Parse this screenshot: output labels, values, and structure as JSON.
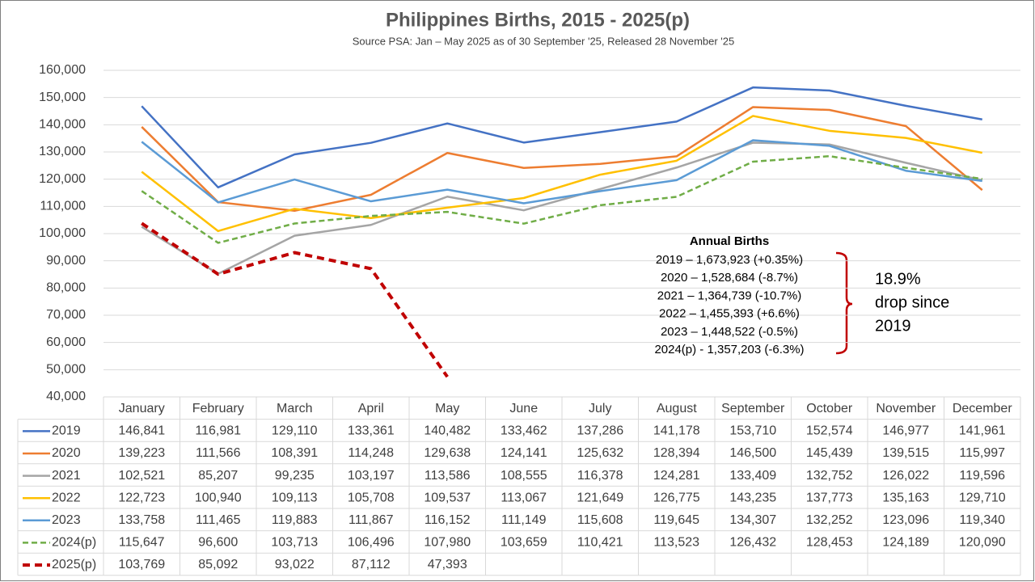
{
  "chart_data": {
    "type": "line",
    "title": "Philippines Births, 2015 - 2025(p)",
    "subtitle": "Source PSA: Jan – May 2025 as of 30 September '25, Released 28 November '25",
    "categories": [
      "January",
      "February",
      "March",
      "April",
      "May",
      "June",
      "July",
      "August",
      "September",
      "October",
      "November",
      "December"
    ],
    "ylim": [
      40000,
      160000
    ],
    "yticks": [
      {
        "value": 40000,
        "label": "40,000"
      },
      {
        "value": 50000,
        "label": "50,000"
      },
      {
        "value": 60000,
        "label": "60,000"
      },
      {
        "value": 70000,
        "label": "70,000"
      },
      {
        "value": 80000,
        "label": "80,000"
      },
      {
        "value": 90000,
        "label": "90,000"
      },
      {
        "value": 100000,
        "label": "100,000"
      },
      {
        "value": 110000,
        "label": "110,000"
      },
      {
        "value": 120000,
        "label": "120,000"
      },
      {
        "value": 130000,
        "label": "130,000"
      },
      {
        "value": 140000,
        "label": "140,000"
      },
      {
        "value": 150000,
        "label": "150,000"
      },
      {
        "value": 160000,
        "label": "160,000"
      }
    ],
    "grid": true,
    "series": [
      {
        "name": "2019",
        "color": "#4472c4",
        "line_style": "solid",
        "line_width": 2.5,
        "values": [
          146841,
          116981,
          129110,
          133361,
          140482,
          133462,
          137286,
          141178,
          153710,
          152574,
          146977,
          141961
        ],
        "value_labels": [
          "146,841",
          "116,981",
          "129,110",
          "133,361",
          "140,482",
          "133,462",
          "137,286",
          "141,178",
          "153,710",
          "152,574",
          "146,977",
          "141,961"
        ]
      },
      {
        "name": "2020",
        "color": "#ed7d31",
        "line_style": "solid",
        "line_width": 2.5,
        "values": [
          139223,
          111566,
          108391,
          114248,
          129638,
          124141,
          125632,
          128394,
          146500,
          145439,
          139515,
          115997
        ],
        "value_labels": [
          "139,223",
          "111,566",
          "108,391",
          "114,248",
          "129,638",
          "124,141",
          "125,632",
          "128,394",
          "146,500",
          "145,439",
          "139,515",
          "115,997"
        ]
      },
      {
        "name": "2021",
        "color": "#a5a5a5",
        "line_style": "solid",
        "line_width": 2.5,
        "values": [
          102521,
          85207,
          99235,
          103197,
          113586,
          108555,
          116378,
          124281,
          133409,
          132752,
          126022,
          119596
        ],
        "value_labels": [
          "102,521",
          "85,207",
          "99,235",
          "103,197",
          "113,586",
          "108,555",
          "116,378",
          "124,281",
          "133,409",
          "132,752",
          "126,022",
          "119,596"
        ]
      },
      {
        "name": "2022",
        "color": "#ffc000",
        "line_style": "solid",
        "line_width": 2.5,
        "values": [
          122723,
          100940,
          109113,
          105708,
          109537,
          113067,
          121649,
          126775,
          143235,
          137773,
          135163,
          129710
        ],
        "value_labels": [
          "122,723",
          "100,940",
          "109,113",
          "105,708",
          "109,537",
          "113,067",
          "121,649",
          "126,775",
          "143,235",
          "137,773",
          "135,163",
          "129,710"
        ]
      },
      {
        "name": "2023",
        "color": "#5b9bd5",
        "line_style": "solid",
        "line_width": 2.5,
        "values": [
          133758,
          111465,
          119883,
          111867,
          116152,
          111149,
          115608,
          119645,
          134307,
          132252,
          123096,
          119340
        ],
        "value_labels": [
          "133,758",
          "111,465",
          "119,883",
          "111,867",
          "116,152",
          "111,149",
          "115,608",
          "119,645",
          "134,307",
          "132,252",
          "123,096",
          "119,340"
        ]
      },
      {
        "name": "2024(p)",
        "color": "#70ad47",
        "line_style": "dashed",
        "line_width": 2.5,
        "values": [
          115647,
          96600,
          103713,
          106496,
          107980,
          103659,
          110421,
          113523,
          126432,
          128453,
          124189,
          120090
        ],
        "value_labels": [
          "115,647",
          "96,600",
          "103,713",
          "106,496",
          "107,980",
          "103,659",
          "110,421",
          "113,523",
          "126,432",
          "128,453",
          "124,189",
          "120,090"
        ]
      },
      {
        "name": "2025(p)",
        "color": "#c00000",
        "line_style": "dashed",
        "line_width": 4,
        "values": [
          103769,
          85092,
          93022,
          87112,
          47393,
          null,
          null,
          null,
          null,
          null,
          null,
          null
        ],
        "value_labels": [
          "103,769",
          "85,092",
          "93,022",
          "87,112",
          "47,393",
          null,
          null,
          null,
          null,
          null,
          null,
          null
        ]
      }
    ],
    "annotations": {
      "title": "Annual Births",
      "lines": [
        "2019 – 1,673,923 (+0.35%)",
        "2020 – 1,528,684 (-8.7%)",
        "2021 – 1,364,739 (-10.7%)",
        "2022 – 1,455,393 (+6.6%)",
        "2023 – 1,448,522 (-0.5%)",
        "2024(p) -  1,357,203 (-6.3%)"
      ],
      "note": [
        "18.9%",
        "drop since",
        "2019"
      ]
    }
  }
}
